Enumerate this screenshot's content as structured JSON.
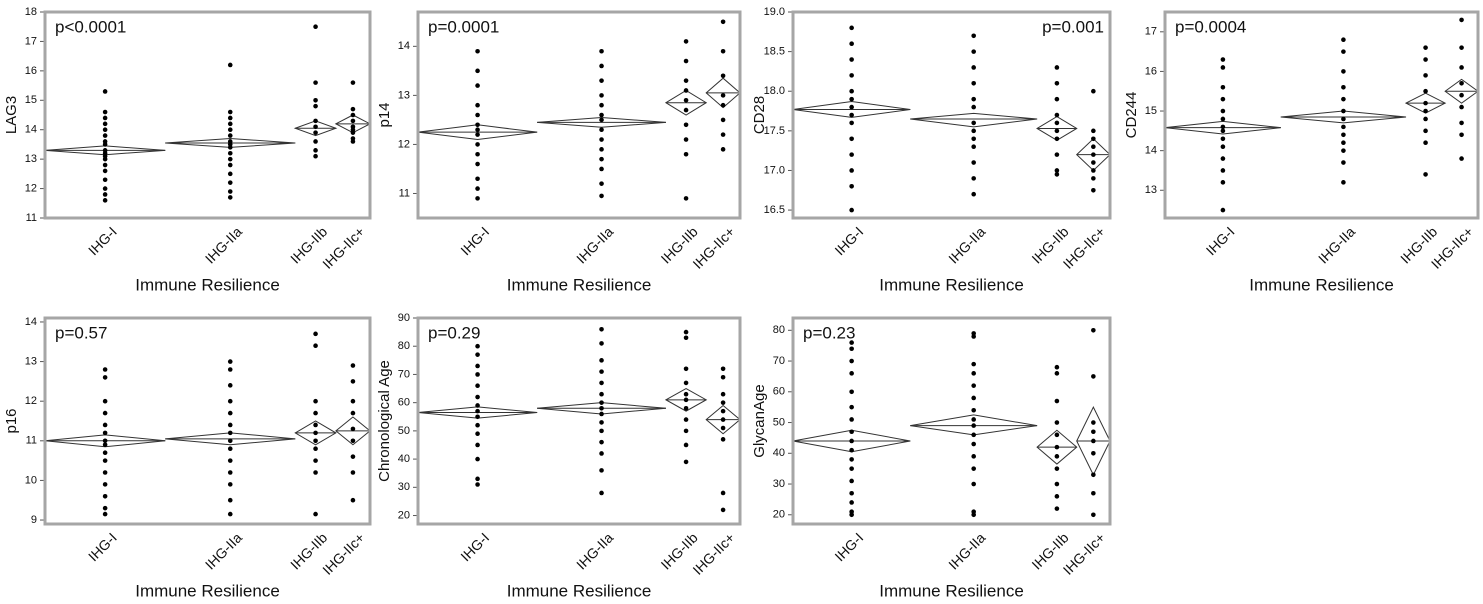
{
  "chart_data": [
    {
      "type": "dot",
      "ylabel": "LAG3",
      "xlabel": "Immune Resilience",
      "annotation": "p<0.0001",
      "annotation_corner": "top-left",
      "color": "#000000",
      "categories": [
        "IHG-I",
        "IHG-IIa",
        "IHG-IIb",
        "IHG-IIc+"
      ],
      "values": [
        [
          15.3,
          14.6,
          14.4,
          14.2,
          14.0,
          13.8,
          13.6,
          13.5,
          13.3,
          13.2,
          13.1,
          13.0,
          12.8,
          12.6,
          12.3,
          12.0,
          11.8,
          11.6
        ],
        [
          16.2,
          14.6,
          14.4,
          14.2,
          14.0,
          13.8,
          13.6,
          13.5,
          13.4,
          13.2,
          13.0,
          12.8,
          12.5,
          12.2,
          11.9,
          11.7
        ],
        [
          17.5,
          15.6,
          15.0,
          14.8,
          14.3,
          14.1,
          13.9,
          13.6,
          13.3,
          13.1
        ],
        [
          15.6,
          14.7,
          14.5,
          14.3,
          14.1,
          14.0,
          13.9,
          13.7,
          13.6
        ]
      ],
      "means": [
        13.3,
        13.55,
        14.05,
        14.2
      ],
      "ci_low": [
        13.15,
        13.4,
        13.8,
        13.9
      ],
      "ci_high": [
        13.45,
        13.7,
        14.3,
        14.5
      ],
      "ylim": [
        11,
        18
      ],
      "yticks": [
        11,
        12,
        13,
        14,
        15,
        16,
        17,
        18
      ]
    },
    {
      "type": "dot",
      "ylabel": "p14",
      "xlabel": "Immune Resilience",
      "annotation": "p=0.0001",
      "annotation_corner": "top-left",
      "color": "#000000",
      "categories": [
        "IHG-I",
        "IHG-IIa",
        "IHG-IIb",
        "IHG-IIc+"
      ],
      "values": [
        [
          13.9,
          13.5,
          13.2,
          12.8,
          12.6,
          12.4,
          12.3,
          12.2,
          12.0,
          11.8,
          11.6,
          11.3,
          11.1,
          10.9
        ],
        [
          13.9,
          13.6,
          13.3,
          13.0,
          12.8,
          12.6,
          12.5,
          12.3,
          12.1,
          11.9,
          11.7,
          11.5,
          11.2,
          10.95
        ],
        [
          14.1,
          13.7,
          13.3,
          13.1,
          12.9,
          12.7,
          12.4,
          12.1,
          11.8,
          10.9
        ],
        [
          14.5,
          13.9,
          13.4,
          13.0,
          12.8,
          12.5,
          12.2,
          11.9
        ]
      ],
      "means": [
        12.25,
        12.45,
        12.85,
        13.05
      ],
      "ci_low": [
        12.1,
        12.35,
        12.6,
        12.75
      ],
      "ci_high": [
        12.4,
        12.55,
        13.1,
        13.35
      ],
      "ylim": [
        10.5,
        14.7
      ],
      "yticks": [
        11,
        12,
        13,
        14
      ]
    },
    {
      "type": "dot",
      "ylabel": "CD28",
      "xlabel": "Immune Resilience",
      "annotation": "p=0.001",
      "annotation_corner": "top-right",
      "color": "#000000",
      "categories": [
        "IHG-I",
        "IHG-IIa",
        "IHG-IIb",
        "IHG-IIc+"
      ],
      "values": [
        [
          18.8,
          18.6,
          18.4,
          18.2,
          18.0,
          17.9,
          17.8,
          17.7,
          17.6,
          17.4,
          17.2,
          17.0,
          16.8,
          16.5
        ],
        [
          18.7,
          18.5,
          18.3,
          18.1,
          17.9,
          17.8,
          17.6,
          17.5,
          17.4,
          17.3,
          17.1,
          16.9,
          16.7
        ],
        [
          18.3,
          18.1,
          17.9,
          17.7,
          17.6,
          17.5,
          17.4,
          17.2,
          17.0,
          16.95
        ],
        [
          18.0,
          17.5,
          17.4,
          17.3,
          17.2,
          17.1,
          17.0,
          16.9,
          16.75
        ]
      ],
      "means": [
        17.77,
        17.65,
        17.53,
        17.2
      ],
      "ci_low": [
        17.67,
        17.55,
        17.38,
        17.0
      ],
      "ci_high": [
        17.87,
        17.72,
        17.68,
        17.4
      ],
      "ylim": [
        16.4,
        19.0
      ],
      "yticks": [
        16.5,
        {
          "value": 17,
          "label": "17.0"
        },
        17.5,
        {
          "value": 18,
          "label": "18.0"
        },
        18.5,
        {
          "value": 19,
          "label": "19.0"
        }
      ]
    },
    {
      "type": "dot",
      "ylabel": "CD244",
      "xlabel": "Immune Resilience",
      "annotation": "p=0.0004",
      "annotation_corner": "top-left",
      "color": "#000000",
      "categories": [
        "IHG-I",
        "IHG-IIa",
        "IHG-IIb",
        "IHG-IIc+"
      ],
      "values": [
        [
          16.3,
          16.1,
          15.6,
          15.3,
          15.0,
          14.8,
          14.6,
          14.5,
          14.3,
          14.1,
          13.8,
          13.5,
          13.2,
          12.5
        ],
        [
          16.8,
          16.5,
          16.0,
          15.6,
          15.3,
          15.0,
          14.8,
          14.6,
          14.4,
          14.2,
          14.0,
          13.7,
          13.2
        ],
        [
          16.6,
          16.3,
          15.9,
          15.5,
          15.2,
          15.0,
          14.8,
          14.5,
          14.2,
          13.4
        ],
        [
          17.3,
          16.6,
          16.1,
          15.7,
          15.4,
          15.1,
          14.7,
          14.4,
          13.8
        ]
      ],
      "means": [
        14.58,
        14.85,
        15.2,
        15.5
      ],
      "ci_low": [
        14.42,
        14.7,
        14.95,
        15.2
      ],
      "ci_high": [
        14.74,
        15.0,
        15.45,
        15.8
      ],
      "ylim": [
        12.3,
        17.5
      ],
      "yticks": [
        13,
        14,
        15,
        16,
        17
      ]
    },
    {
      "type": "dot",
      "ylabel": "p16",
      "xlabel": "Immune Resilience",
      "annotation": "p=0.57",
      "annotation_corner": "top-left",
      "color": "#000000",
      "categories": [
        "IHG-I",
        "IHG-IIa",
        "IHG-IIb",
        "IHG-IIc+"
      ],
      "values": [
        [
          12.8,
          12.6,
          12.0,
          11.7,
          11.4,
          11.2,
          11.0,
          10.9,
          10.7,
          10.5,
          10.2,
          9.9,
          9.6,
          9.3,
          9.15
        ],
        [
          13.0,
          12.8,
          12.4,
          12.0,
          11.7,
          11.4,
          11.2,
          11.0,
          10.8,
          10.5,
          10.2,
          9.9,
          9.5,
          9.15
        ],
        [
          13.7,
          13.4,
          12.0,
          11.7,
          11.4,
          11.2,
          11.0,
          10.8,
          10.5,
          10.2,
          9.15
        ],
        [
          12.9,
          12.5,
          12.0,
          11.7,
          11.3,
          11.0,
          10.6,
          10.2,
          9.5
        ]
      ],
      "means": [
        11.0,
        11.05,
        11.2,
        11.25
      ],
      "ci_low": [
        10.85,
        10.9,
        10.9,
        10.9
      ],
      "ci_high": [
        11.15,
        11.2,
        11.5,
        11.6
      ],
      "ylim": [
        8.9,
        14.1
      ],
      "yticks": [
        9,
        10,
        11,
        12,
        13,
        14
      ]
    },
    {
      "type": "dot",
      "ylabel": "Chronological Age",
      "xlabel": "Immune Resilience",
      "annotation": "p=0.29",
      "annotation_corner": "top-left",
      "color": "#000000",
      "categories": [
        "IHG-I",
        "IHG-IIa",
        "IHG-IIb",
        "IHG-IIc+"
      ],
      "values": [
        [
          80,
          77,
          73,
          70,
          66,
          62,
          59,
          57,
          55,
          52,
          49,
          45,
          40,
          33,
          31
        ],
        [
          86,
          81,
          75,
          71,
          67,
          63,
          60,
          58,
          56,
          53,
          50,
          46,
          42,
          36,
          28
        ],
        [
          85,
          83,
          72,
          67,
          63,
          61,
          58,
          54,
          50,
          45,
          39
        ],
        [
          72,
          69,
          63,
          60,
          57,
          54,
          51,
          47,
          28,
          22
        ]
      ],
      "means": [
        56.5,
        58,
        61,
        54
      ],
      "ci_low": [
        54.5,
        56,
        57,
        49
      ],
      "ci_high": [
        58.5,
        60,
        65,
        59
      ],
      "ylim": [
        17,
        90
      ],
      "yticks": [
        20,
        30,
        40,
        50,
        60,
        70,
        80,
        90
      ]
    },
    {
      "type": "dot",
      "ylabel": "GlycanAge",
      "xlabel": "Immune Resilience",
      "annotation": "p=0.23",
      "annotation_corner": "top-left",
      "color": "#000000",
      "categories": [
        "IHG-I",
        "IHG-IIa",
        "IHG-IIb",
        "IHG-IIc+"
      ],
      "values": [
        [
          76,
          74,
          70,
          66,
          60,
          55,
          51,
          47,
          44,
          41,
          38,
          35,
          31,
          27,
          24,
          21,
          20
        ],
        [
          79,
          78,
          69,
          66,
          62,
          58,
          54,
          51,
          49,
          46,
          43,
          39,
          35,
          30,
          21,
          20
        ],
        [
          68,
          66,
          57,
          50,
          46,
          42,
          39,
          35,
          30,
          26,
          22
        ],
        [
          80,
          65,
          50,
          47,
          44,
          40,
          33,
          27,
          20
        ]
      ],
      "means": [
        44,
        49,
        42,
        44
      ],
      "ci_low": [
        40.5,
        46,
        36.5,
        33
      ],
      "ci_high": [
        47.5,
        52.5,
        47.5,
        55
      ],
      "ylim": [
        17,
        84
      ],
      "yticks": [
        20,
        30,
        40,
        50,
        60,
        70,
        80
      ]
    }
  ]
}
